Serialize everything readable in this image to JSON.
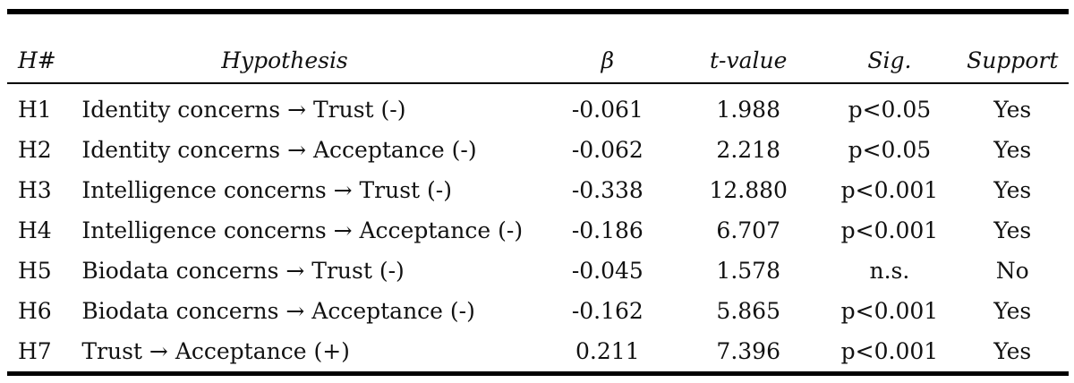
{
  "table": {
    "headers": {
      "h": "H#",
      "hypothesis": "Hypothesis",
      "beta": "β",
      "tvalue": "t-value",
      "sig": "Sig.",
      "support": "Support"
    },
    "rows": [
      {
        "h": "H1",
        "hypothesis": "Identity concerns → Trust (-)",
        "beta": "-0.061",
        "tvalue": "1.988",
        "sig": "p<0.05",
        "support": "Yes"
      },
      {
        "h": "H2",
        "hypothesis": "Identity concerns → Acceptance (-)",
        "beta": "-0.062",
        "tvalue": "2.218",
        "sig": "p<0.05",
        "support": "Yes"
      },
      {
        "h": "H3",
        "hypothesis": "Intelligence concerns → Trust (-)",
        "beta": "-0.338",
        "tvalue": "12.880",
        "sig": "p<0.001",
        "support": "Yes"
      },
      {
        "h": "H4",
        "hypothesis": "Intelligence concerns → Acceptance (-)",
        "beta": "-0.186",
        "tvalue": "6.707",
        "sig": "p<0.001",
        "support": "Yes"
      },
      {
        "h": "H5",
        "hypothesis": "Biodata concerns → Trust (-)",
        "beta": "-0.045",
        "tvalue": "1.578",
        "sig": "n.s.",
        "support": "No"
      },
      {
        "h": "H6",
        "hypothesis": "Biodata concerns → Acceptance (-)",
        "beta": "-0.162",
        "tvalue": "5.865",
        "sig": "p<0.001",
        "support": "Yes"
      },
      {
        "h": "H7",
        "hypothesis": "Trust → Acceptance (+)",
        "beta": "0.211",
        "tvalue": "7.396",
        "sig": "p<0.001",
        "support": "Yes"
      }
    ]
  }
}
